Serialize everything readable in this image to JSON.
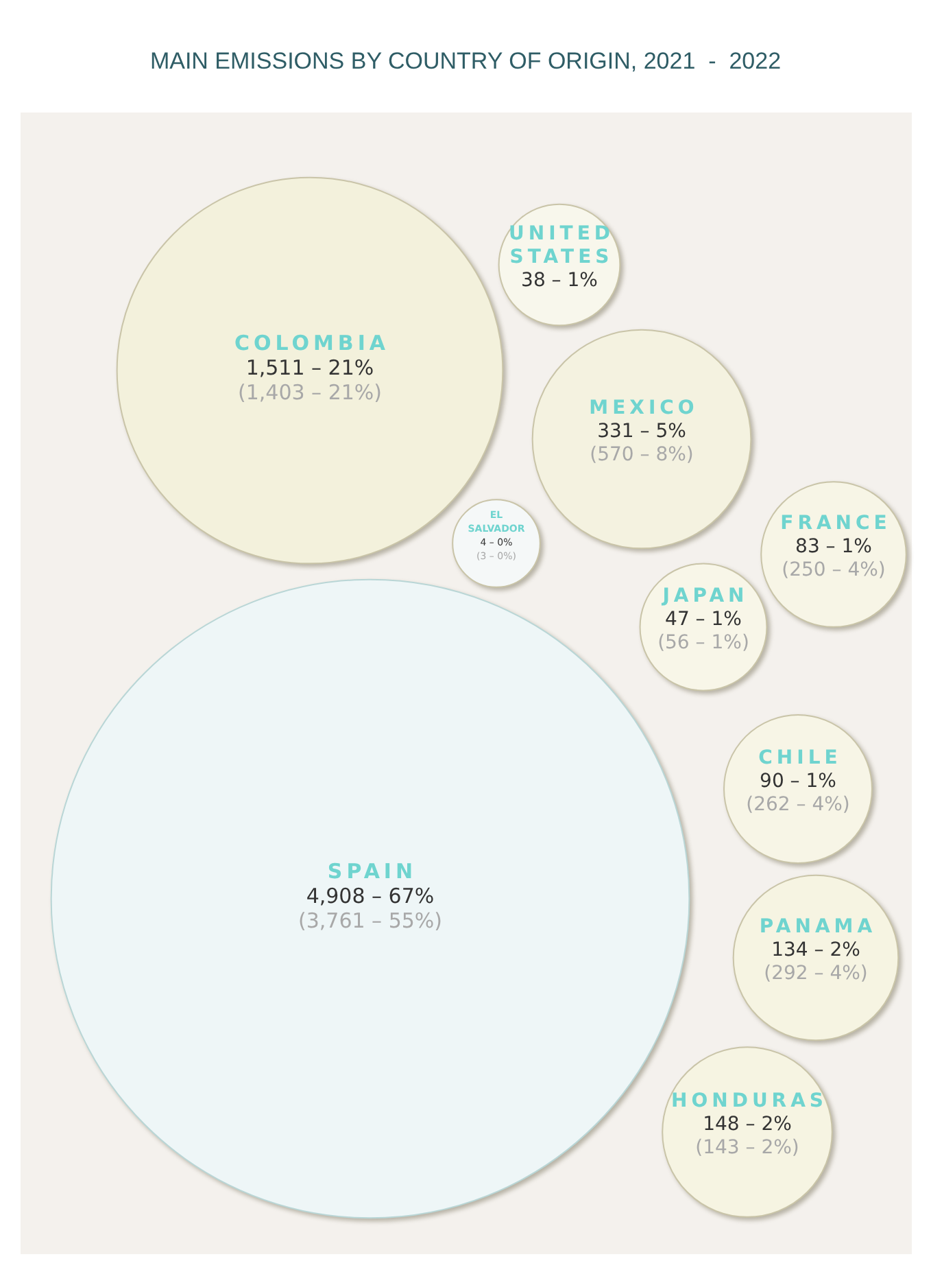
{
  "chart_data": {
    "type": "other",
    "title": "MAIN EMISSIONS BY COUNTRY OF ORIGIN, 2021  -  2022",
    "categories": [
      "COLOMBIA",
      "UNITED STATES",
      "MEXICO",
      "EL SALVADOR",
      "FRANCE",
      "JAPAN",
      "CHILE",
      "SPAIN",
      "PANAMA",
      "HONDURAS"
    ],
    "series": [
      {
        "colors": [
          "#f3f1dc",
          "#f8f7ec",
          "#f4f2e0",
          "#f5f8f8",
          "#f7f5e6",
          "#f8f6e8",
          "#f7f5e6",
          "#eef6f7",
          "#f6f4e2",
          "#f6f4e2"
        ],
        "values": [
          1511,
          38,
          331,
          4,
          83,
          47,
          90,
          4908,
          134,
          148
        ],
        "value_labels": [
          "1,511 – 21%",
          "38 – 1%",
          "331 – 5%",
          "4 – 0%",
          "83 – 1%",
          "47 – 1%",
          "90 – 1%",
          "4,908 – 67%",
          "134 – 2%",
          "148 – 2%"
        ]
      },
      {
        "color": "#a8a8a8",
        "values": [
          1403,
          null,
          570,
          3,
          250,
          56,
          262,
          3761,
          292,
          143
        ],
        "value_labels": [
          "(1,403 – 21%)",
          null,
          "(570 – 8%)",
          "(3 – 0%)",
          "(250 – 4%)",
          "(56 – 1%)",
          "(262 – 4%)",
          "(3,761 – 55%)",
          "(292 – 4%)",
          "(143 – 2%)"
        ]
      }
    ]
  }
}
